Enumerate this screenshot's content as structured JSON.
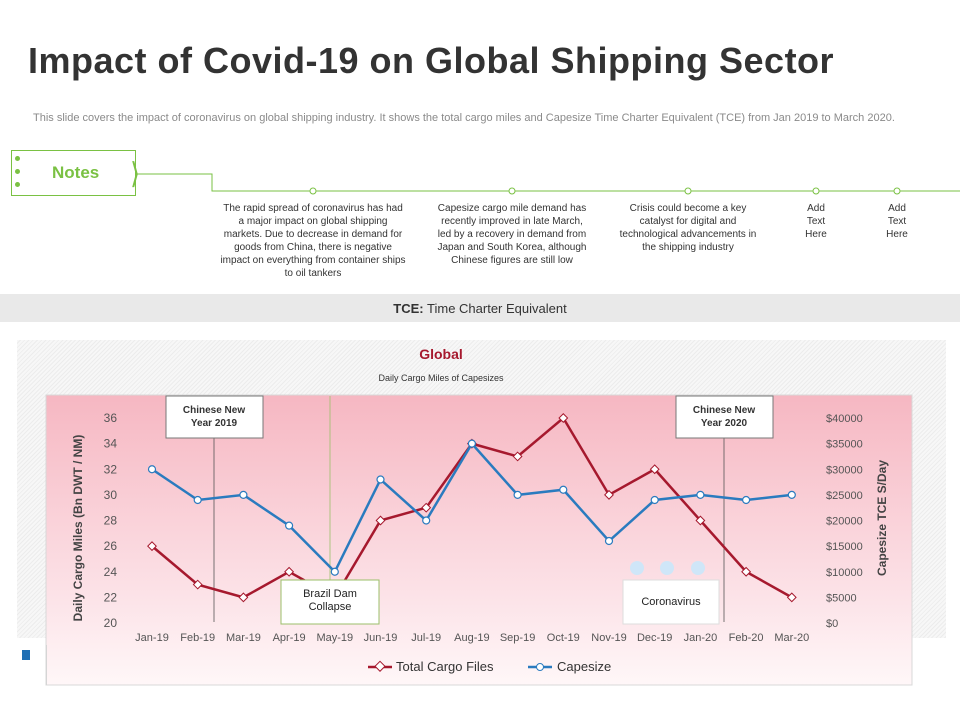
{
  "title": "Impact of Covid-19 on Global Shipping Sector",
  "description": "This slide covers the impact of coronavirus on global shipping industry. It shows the total cargo miles and Capesize Time Charter Equivalent (TCE) from Jan 2019 to March 2020.",
  "notes": {
    "label": "Notes",
    "items": [
      "The rapid spread of coronavirus has had a major impact on global shipping markets. Due to decrease in demand for goods from China, there is negative impact on everything from container ships to oil tankers",
      "Capesize cargo mile demand has recently improved in late March, led by a recovery in demand from Japan and South Korea, although Chinese figures are still low",
      "Crisis could become a key catalyst for digital and technological advancements in the shipping industry",
      "Add Text Here",
      "Add Text Here"
    ]
  },
  "tce_bar": {
    "term": "TCE:",
    "definition": "Time Charter Equivalent"
  },
  "colors": {
    "accent_green": "#7ac143",
    "cargo": "#a6192e",
    "capesize": "#2a7bbf",
    "plot_bg_top": "#f6b8c3"
  },
  "chart_data": {
    "type": "line",
    "title": "Global",
    "subtitle": "Daily Cargo Miles of Capesizes",
    "categories": [
      "Jan-19",
      "Feb-19",
      "Mar-19",
      "Apr-19",
      "May-19",
      "Jun-19",
      "Jul-19",
      "Aug-19",
      "Sep-19",
      "Oct-19",
      "Nov-19",
      "Dec-19",
      "Jan-20",
      "Feb-20",
      "Mar-20"
    ],
    "ylabel_left": "Daily Cargo Miles (Bn DWT / NM)",
    "ylabel_right": "Capesize TCE S/Day",
    "ylim_left": [
      20,
      36
    ],
    "yticks_left": [
      "20",
      "22",
      "24",
      "26",
      "28",
      "30",
      "32",
      "34",
      "36"
    ],
    "ylim_right": [
      0,
      40000
    ],
    "yticks_right": [
      "$0",
      "$5000",
      "$10000",
      "$15000",
      "$20000",
      "$25000",
      "$30000",
      "$35000",
      "$40000"
    ],
    "series": [
      {
        "name": "Total Cargo Files",
        "axis": "left",
        "values": [
          26,
          23,
          22,
          24,
          22,
          28,
          29,
          34,
          33,
          36,
          30,
          32,
          28,
          24,
          22
        ]
      },
      {
        "name": "Capesize",
        "axis": "right",
        "values": [
          30000,
          24000,
          25000,
          19000,
          10000,
          28000,
          20000,
          35000,
          25000,
          26000,
          16000,
          24000,
          25000,
          24000,
          25000
        ]
      }
    ],
    "annotations": [
      {
        "text": "Chinese New Year 2019",
        "category": "Feb-19"
      },
      {
        "text": "Brazil Dam Collapse",
        "category": "May-19"
      },
      {
        "text": "Chinese New Year 2020",
        "category": "Jan-20"
      },
      {
        "text": "Coronavirus",
        "category": "Dec-19"
      }
    ]
  }
}
